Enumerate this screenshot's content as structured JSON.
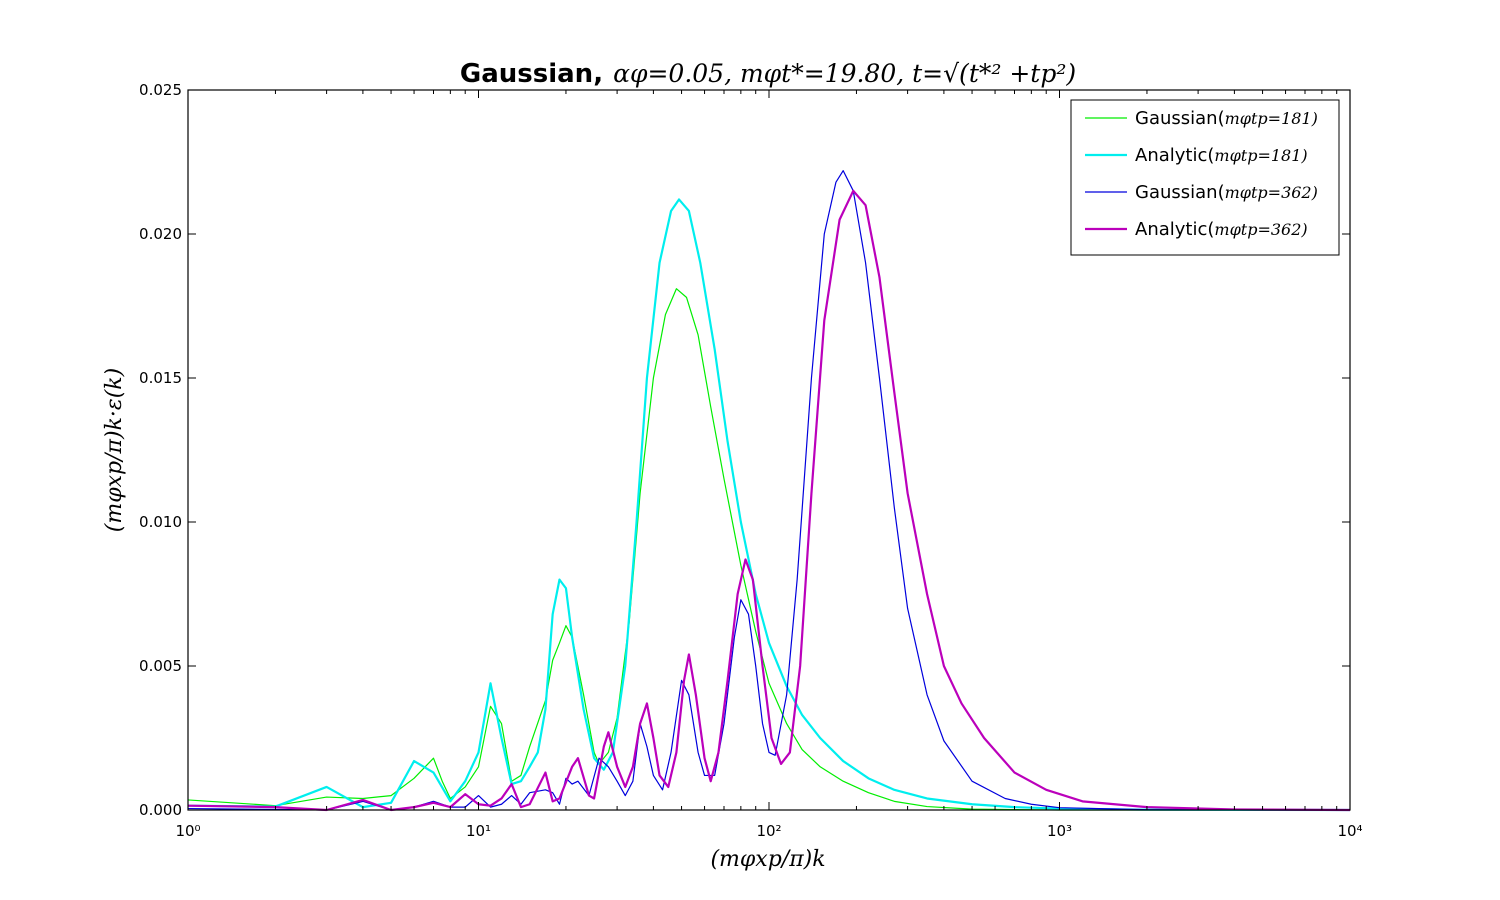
{
  "chart_data": {
    "type": "line",
    "title": {
      "word": "Gaussian,",
      "math": "αφ=0.05, mφt*=19.80, t=√(t*² +tp²)"
    },
    "xlabel": "(mφxp/π)k",
    "ylabel": "(mφxp/π)k·ε(k)",
    "xscale": "log",
    "xlim": [
      1,
      10000
    ],
    "ylim": [
      0,
      0.025
    ],
    "x_ticks": [
      {
        "value": 1,
        "label": "10⁰"
      },
      {
        "value": 10,
        "label": "10¹"
      },
      {
        "value": 100,
        "label": "10²"
      },
      {
        "value": 1000,
        "label": "10³"
      },
      {
        "value": 10000,
        "label": "10⁴"
      }
    ],
    "y_ticks": [
      {
        "value": 0,
        "label": "0.000"
      },
      {
        "value": 0.005,
        "label": "0.005"
      },
      {
        "value": 0.01,
        "label": "0.010"
      },
      {
        "value": 0.015,
        "label": "0.015"
      },
      {
        "value": 0.02,
        "label": "0.020"
      },
      {
        "value": 0.025,
        "label": "0.025"
      }
    ],
    "grid": false,
    "legend_position": "top-right",
    "series": [
      {
        "name": "Gaussian(mφtp=181)",
        "legend_word": "Gaussian(",
        "legend_math": "mφtp=181)",
        "color": "#00ee00",
        "width": 1.2,
        "points": [
          [
            1,
            0.00035
          ],
          [
            2,
            0.00015
          ],
          [
            3,
            0.00045
          ],
          [
            4,
            0.0004
          ],
          [
            5,
            0.0005
          ],
          [
            6,
            0.0011
          ],
          [
            7,
            0.0018
          ],
          [
            7.5,
            0.001
          ],
          [
            8,
            0.0004
          ],
          [
            9,
            0.0008
          ],
          [
            10,
            0.0015
          ],
          [
            11,
            0.0036
          ],
          [
            12,
            0.003
          ],
          [
            13,
            0.001
          ],
          [
            14,
            0.0012
          ],
          [
            15,
            0.0022
          ],
          [
            17,
            0.0038
          ],
          [
            18,
            0.0052
          ],
          [
            19,
            0.0058
          ],
          [
            20,
            0.0064
          ],
          [
            21,
            0.006
          ],
          [
            23,
            0.004
          ],
          [
            25,
            0.002
          ],
          [
            26,
            0.0016
          ],
          [
            28,
            0.002
          ],
          [
            30,
            0.0032
          ],
          [
            33,
            0.0065
          ],
          [
            36,
            0.011
          ],
          [
            40,
            0.015
          ],
          [
            44,
            0.0172
          ],
          [
            48,
            0.0181
          ],
          [
            52,
            0.0178
          ],
          [
            57,
            0.0165
          ],
          [
            63,
            0.014
          ],
          [
            70,
            0.0115
          ],
          [
            80,
            0.0085
          ],
          [
            90,
            0.0062
          ],
          [
            100,
            0.0044
          ],
          [
            115,
            0.003
          ],
          [
            130,
            0.0021
          ],
          [
            150,
            0.0015
          ],
          [
            180,
            0.001
          ],
          [
            220,
            0.0006
          ],
          [
            270,
            0.0003
          ],
          [
            350,
            0.00012
          ],
          [
            500,
            3e-05
          ],
          [
            1000,
            0.0
          ],
          [
            10000,
            0.0
          ]
        ]
      },
      {
        "name": "Analytic(mφtp=181)",
        "legend_word": "Analytic(",
        "legend_math": "mφtp=181)",
        "color": "#00eeee",
        "width": 2.2,
        "points": [
          [
            1,
            0.00015
          ],
          [
            2,
            0.00012
          ],
          [
            3,
            0.0008
          ],
          [
            4,
            0.0001
          ],
          [
            5,
            0.00025
          ],
          [
            6,
            0.0017
          ],
          [
            7,
            0.0013
          ],
          [
            8,
            0.0003
          ],
          [
            9,
            0.001
          ],
          [
            10,
            0.002
          ],
          [
            11,
            0.0044
          ],
          [
            12,
            0.0025
          ],
          [
            13,
            0.0009
          ],
          [
            14,
            0.001
          ],
          [
            15,
            0.0015
          ],
          [
            16,
            0.002
          ],
          [
            17,
            0.0035
          ],
          [
            18,
            0.0068
          ],
          [
            19,
            0.008
          ],
          [
            20,
            0.0077
          ],
          [
            21,
            0.006
          ],
          [
            23,
            0.0035
          ],
          [
            25,
            0.0018
          ],
          [
            27,
            0.0014
          ],
          [
            29,
            0.002
          ],
          [
            32,
            0.005
          ],
          [
            35,
            0.01
          ],
          [
            38,
            0.015
          ],
          [
            42,
            0.019
          ],
          [
            46,
            0.0208
          ],
          [
            49,
            0.0212
          ],
          [
            53,
            0.0208
          ],
          [
            58,
            0.019
          ],
          [
            65,
            0.016
          ],
          [
            72,
            0.0128
          ],
          [
            80,
            0.01
          ],
          [
            90,
            0.0075
          ],
          [
            100,
            0.0058
          ],
          [
            115,
            0.0043
          ],
          [
            130,
            0.0033
          ],
          [
            150,
            0.0025
          ],
          [
            180,
            0.0017
          ],
          [
            220,
            0.0011
          ],
          [
            270,
            0.0007
          ],
          [
            350,
            0.0004
          ],
          [
            500,
            0.0002
          ],
          [
            700,
            0.0001
          ],
          [
            1000,
            5e-05
          ],
          [
            2000,
            1e-05
          ],
          [
            10000,
            0.0
          ]
        ]
      },
      {
        "name": "Gaussian(mφtp=362)",
        "legend_word": "Gaussian(",
        "legend_math": "mφtp=362)",
        "color": "#0000dd",
        "width": 1.2,
        "points": [
          [
            1,
            5e-05
          ],
          [
            3,
            0.0
          ],
          [
            4,
            0.0003
          ],
          [
            5,
            0.0
          ],
          [
            6,
            0.0001
          ],
          [
            7,
            0.0003
          ],
          [
            8,
            0.0001
          ],
          [
            9,
            0.0001
          ],
          [
            10,
            0.0005
          ],
          [
            11,
            0.0001
          ],
          [
            12,
            0.0002
          ],
          [
            13,
            0.0005
          ],
          [
            14,
            0.0002
          ],
          [
            15,
            0.0006
          ],
          [
            17,
            0.0007
          ],
          [
            18,
            0.0006
          ],
          [
            19,
            0.0002
          ],
          [
            20,
            0.0011
          ],
          [
            21,
            0.0009
          ],
          [
            22,
            0.001
          ],
          [
            24,
            0.0005
          ],
          [
            26,
            0.0018
          ],
          [
            28,
            0.0015
          ],
          [
            30,
            0.001
          ],
          [
            32,
            0.0005
          ],
          [
            34,
            0.001
          ],
          [
            36,
            0.003
          ],
          [
            38,
            0.0022
          ],
          [
            40,
            0.0012
          ],
          [
            43,
            0.0007
          ],
          [
            46,
            0.002
          ],
          [
            50,
            0.0045
          ],
          [
            53,
            0.004
          ],
          [
            57,
            0.002
          ],
          [
            60,
            0.0012
          ],
          [
            65,
            0.0012
          ],
          [
            70,
            0.003
          ],
          [
            76,
            0.006
          ],
          [
            80,
            0.0073
          ],
          [
            85,
            0.0068
          ],
          [
            90,
            0.005
          ],
          [
            95,
            0.003
          ],
          [
            100,
            0.002
          ],
          [
            105,
            0.0019
          ],
          [
            115,
            0.004
          ],
          [
            125,
            0.008
          ],
          [
            140,
            0.015
          ],
          [
            155,
            0.02
          ],
          [
            170,
            0.0218
          ],
          [
            180,
            0.0222
          ],
          [
            195,
            0.0215
          ],
          [
            215,
            0.019
          ],
          [
            240,
            0.015
          ],
          [
            270,
            0.0105
          ],
          [
            300,
            0.007
          ],
          [
            350,
            0.004
          ],
          [
            400,
            0.0024
          ],
          [
            500,
            0.001
          ],
          [
            650,
            0.0004
          ],
          [
            800,
            0.0002
          ],
          [
            1000,
            8e-05
          ],
          [
            2000,
            1e-05
          ],
          [
            10000,
            0.0
          ]
        ]
      },
      {
        "name": "Analytic(mφtp=362)",
        "legend_word": "Analytic(",
        "legend_math": "mφtp=362)",
        "color": "#bb00bb",
        "width": 2.2,
        "points": [
          [
            1,
            0.00015
          ],
          [
            2,
            0.0001
          ],
          [
            3,
            0.0
          ],
          [
            4,
            0.00035
          ],
          [
            5,
            0.0
          ],
          [
            6,
            0.0001
          ],
          [
            7,
            0.00025
          ],
          [
            8,
            0.0001
          ],
          [
            9,
            0.00055
          ],
          [
            10,
            0.0002
          ],
          [
            11,
            0.00015
          ],
          [
            12,
            0.0004
          ],
          [
            13,
            0.0009
          ],
          [
            14,
            0.0001
          ],
          [
            15,
            0.0002
          ],
          [
            17,
            0.0013
          ],
          [
            18,
            0.0003
          ],
          [
            19,
            0.0004
          ],
          [
            21,
            0.0015
          ],
          [
            22,
            0.0018
          ],
          [
            24,
            0.0005
          ],
          [
            25,
            0.0004
          ],
          [
            27,
            0.0022
          ],
          [
            28,
            0.0027
          ],
          [
            30,
            0.0015
          ],
          [
            32,
            0.0008
          ],
          [
            34,
            0.0015
          ],
          [
            36,
            0.003
          ],
          [
            38,
            0.0037
          ],
          [
            40,
            0.0025
          ],
          [
            42,
            0.0012
          ],
          [
            45,
            0.0008
          ],
          [
            48,
            0.002
          ],
          [
            51,
            0.0045
          ],
          [
            53,
            0.0054
          ],
          [
            56,
            0.004
          ],
          [
            60,
            0.0018
          ],
          [
            63,
            0.001
          ],
          [
            67,
            0.002
          ],
          [
            72,
            0.0045
          ],
          [
            78,
            0.0075
          ],
          [
            83,
            0.0087
          ],
          [
            88,
            0.008
          ],
          [
            95,
            0.005
          ],
          [
            102,
            0.0025
          ],
          [
            110,
            0.0016
          ],
          [
            118,
            0.002
          ],
          [
            128,
            0.005
          ],
          [
            140,
            0.011
          ],
          [
            155,
            0.017
          ],
          [
            175,
            0.0205
          ],
          [
            195,
            0.0215
          ],
          [
            215,
            0.021
          ],
          [
            240,
            0.0185
          ],
          [
            270,
            0.0145
          ],
          [
            300,
            0.011
          ],
          [
            350,
            0.0075
          ],
          [
            400,
            0.005
          ],
          [
            460,
            0.0037
          ],
          [
            550,
            0.0025
          ],
          [
            700,
            0.0013
          ],
          [
            900,
            0.0007
          ],
          [
            1200,
            0.0003
          ],
          [
            2000,
            0.0001
          ],
          [
            4000,
            2e-05
          ],
          [
            10000,
            0.0
          ]
        ]
      }
    ]
  }
}
